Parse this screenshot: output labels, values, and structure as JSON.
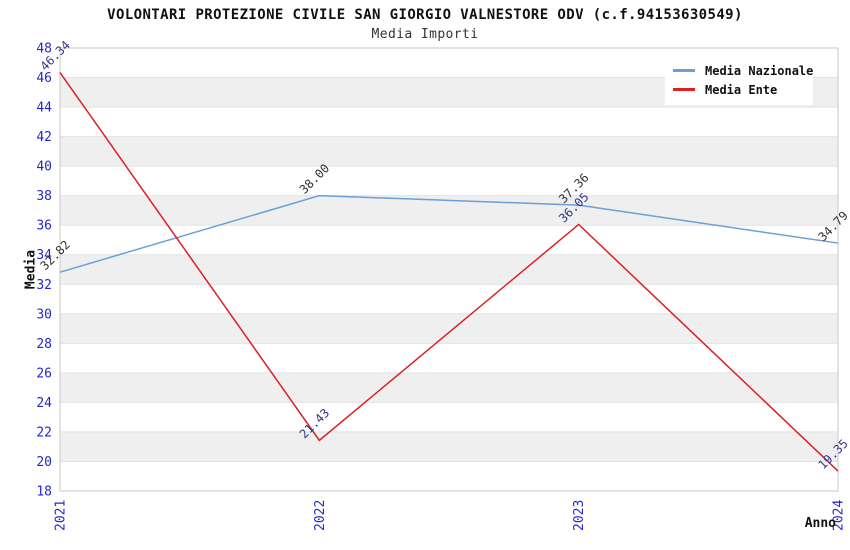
{
  "header": {
    "title": "VOLONTARI PROTEZIONE CIVILE SAN GIORGIO VALNESTORE ODV (c.f.94153630549)",
    "subtitle": "Media Importi"
  },
  "legend": {
    "items": [
      {
        "label": "Media Nazionale",
        "color": "#6a9fd8"
      },
      {
        "label": "Media Ente",
        "color": "#dd2020"
      }
    ]
  },
  "axes": {
    "ylabel": "Media",
    "xlabel": "Anno"
  },
  "colors": {
    "tick_label": "#2626cc",
    "band_fill": "#efefef",
    "band_edge": "#e2e2e2",
    "plot_border": "#c8c8c8",
    "title_text": "#111111"
  },
  "chart_data": {
    "type": "line",
    "title": "VOLONTARI PROTEZIONE CIVILE SAN GIORGIO VALNESTORE ODV (c.f.94153630549)",
    "subtitle": "Media Importi",
    "x": [
      "2021",
      "2022",
      "2023",
      "2024"
    ],
    "series": [
      {
        "name": "Media Nazionale",
        "color": "#6a9fd8",
        "label_color": "#333333",
        "values": [
          32.82,
          38.0,
          37.36,
          34.79
        ]
      },
      {
        "name": "Media Ente",
        "color": "#dd2020",
        "label_color": "#333388",
        "values": [
          46.34,
          21.43,
          36.05,
          19.35
        ]
      }
    ],
    "xlabel": "Anno",
    "ylabel": "Media",
    "ylim": [
      18,
      48
    ],
    "ytick_step": 2,
    "grid": "banded-horizontal",
    "legend_position": "top-right",
    "point_labels": "values shown rotated 45deg at each point"
  }
}
